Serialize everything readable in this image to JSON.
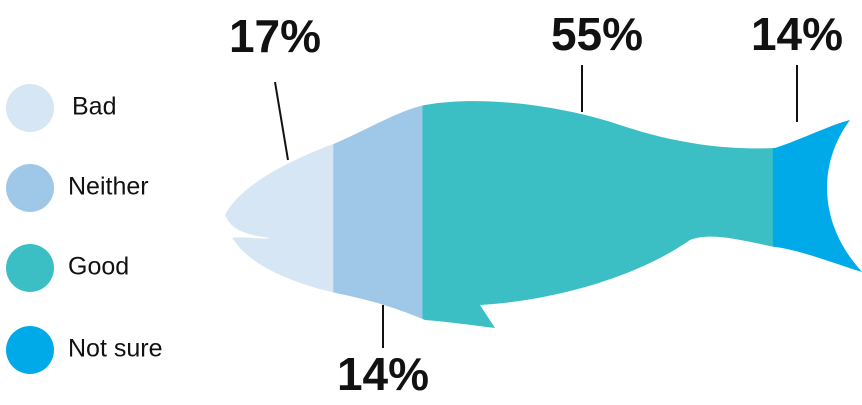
{
  "chart_data": {
    "type": "fish",
    "categories": [
      "Bad",
      "Neither",
      "Good",
      "Not sure"
    ],
    "values": [
      17,
      14,
      55,
      14
    ],
    "value_labels": [
      "17%",
      "14%",
      "55%",
      "14%"
    ],
    "colors": [
      "#d6e6f4",
      "#9fc8e8",
      "#3bbfc4",
      "#00a9e8"
    ]
  }
}
